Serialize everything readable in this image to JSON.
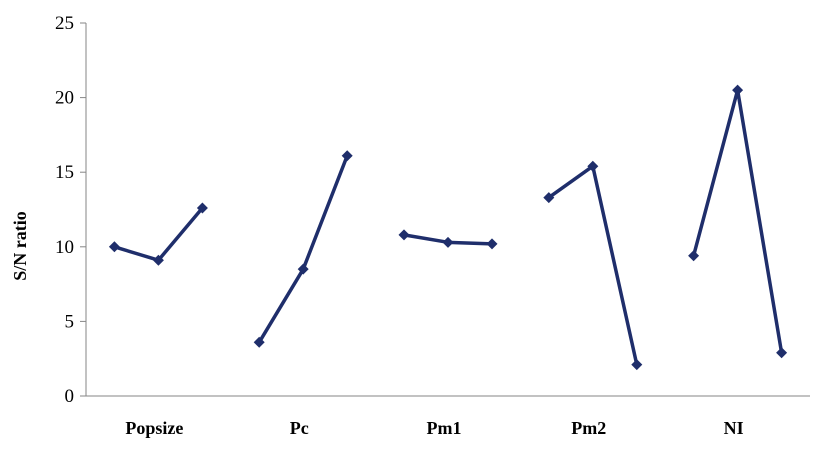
{
  "chart_data": {
    "type": "line",
    "title": "",
    "xlabel": "",
    "ylabel": "S/N ratio",
    "ylim": [
      0,
      25
    ],
    "yticks": [
      0,
      5,
      10,
      15,
      20,
      25
    ],
    "grid": false,
    "legend": "none",
    "line_color": "#1F2E6B",
    "categories": [
      "Popsize",
      "Pc",
      "Pm1",
      "Pm2",
      "NI"
    ],
    "groups": [
      {
        "factor": "Popsize",
        "values": [
          10.0,
          9.1,
          12.6
        ]
      },
      {
        "factor": "Pc",
        "values": [
          3.6,
          8.5,
          16.1
        ]
      },
      {
        "factor": "Pm1",
        "values": [
          10.8,
          10.3,
          10.2
        ]
      },
      {
        "factor": "Pm2",
        "values": [
          13.3,
          15.4,
          2.1
        ]
      },
      {
        "factor": "NI",
        "values": [
          9.4,
          20.5,
          2.9
        ]
      }
    ]
  }
}
